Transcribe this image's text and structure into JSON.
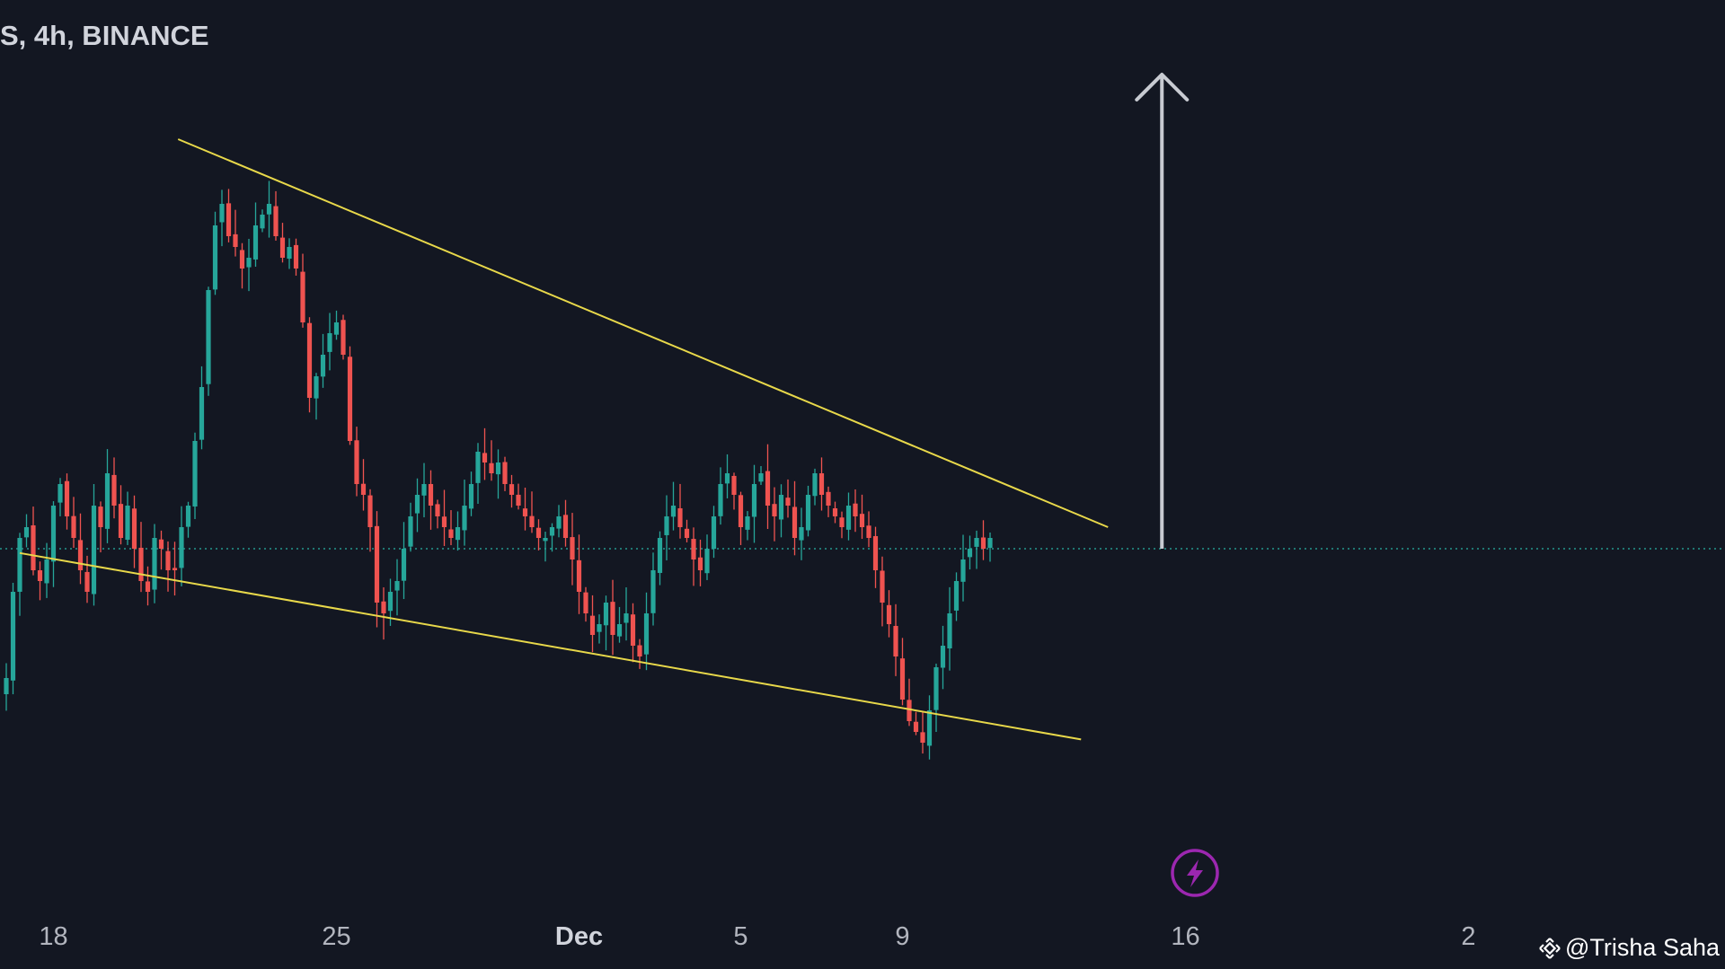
{
  "header": {
    "symbol_title": "S, 4h, BINANCE"
  },
  "watermark": {
    "text": "@Trisha Saha"
  },
  "colors": {
    "background": "#131722",
    "up": "#26a69a",
    "down": "#ef5350",
    "trendline": "#e8d84a",
    "price_line": "#26a69a",
    "arrow": "#c8cbd2",
    "flash_badge": "#9c27b0"
  },
  "chart_data": {
    "type": "candlestick",
    "timeframe": "4h",
    "exchange": "BINANCE",
    "x_ticks": [
      {
        "label": "18",
        "bold": false,
        "index": 7
      },
      {
        "label": "25",
        "bold": false,
        "index": 49
      },
      {
        "label": "Dec",
        "bold": true,
        "index": 85
      },
      {
        "label": "5",
        "bold": false,
        "index": 109
      },
      {
        "label": "9",
        "bold": false,
        "index": 133
      },
      {
        "label": "16",
        "bold": false,
        "index": 175
      },
      {
        "label": "2",
        "bold": false,
        "index": 217
      }
    ],
    "price_line_value": 100.0,
    "closes": [
      88,
      96,
      101,
      102,
      98,
      97,
      99,
      104,
      106,
      103,
      101,
      98,
      96,
      104,
      102,
      107,
      104,
      101,
      104,
      100,
      97,
      96,
      101,
      100,
      98,
      98,
      102,
      104,
      110,
      115,
      124,
      130,
      132,
      129,
      128,
      126,
      127,
      130,
      131,
      132,
      129,
      127,
      128,
      126,
      121,
      114,
      116,
      118,
      120,
      121,
      118,
      110,
      106,
      105,
      102,
      95,
      94,
      96,
      97,
      100,
      103,
      105,
      106,
      104,
      103,
      102,
      101,
      102,
      104,
      106,
      109,
      108,
      107,
      108,
      106,
      105,
      104,
      103,
      102,
      101,
      101,
      102,
      103,
      101,
      99,
      96,
      94,
      92,
      93,
      95,
      92,
      93,
      94,
      91,
      90,
      94,
      98,
      101,
      103,
      104,
      102,
      101,
      99,
      98,
      100,
      103,
      106,
      107,
      105,
      102,
      103,
      106,
      107,
      104,
      103,
      105,
      104,
      101,
      102,
      105,
      107,
      105,
      104,
      103,
      102,
      104,
      103,
      102,
      101,
      98,
      95,
      93,
      90,
      86,
      84,
      83,
      82,
      85,
      89,
      91,
      94,
      97,
      99,
      100,
      101,
      100,
      101
    ],
    "trendlines": [
      {
        "name": "upper",
        "from": {
          "index": 25.5,
          "value": 138.0
        },
        "to": {
          "index": 163.5,
          "value": 102.0
        }
      },
      {
        "name": "lower",
        "from": {
          "index": 2.0,
          "value": 99.6
        },
        "to": {
          "index": 159.5,
          "value": 82.3
        }
      }
    ],
    "arrow": {
      "index": 171.5,
      "from_value": 100.0,
      "to_value": 144.0
    }
  }
}
